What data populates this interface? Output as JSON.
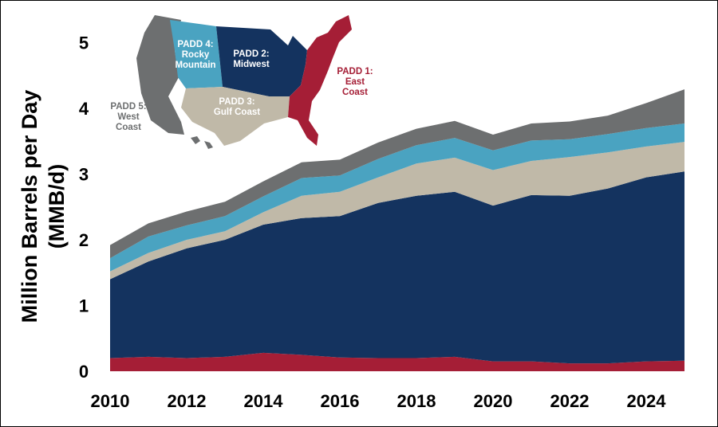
{
  "chart_data": {
    "type": "area",
    "stacked": true,
    "ylabel_line1": "Million Barrels per Day",
    "ylabel_line2": "(MMB/d)",
    "x": [
      2010,
      2011,
      2012,
      2013,
      2014,
      2015,
      2016,
      2017,
      2018,
      2019,
      2020,
      2021,
      2022,
      2023,
      2024,
      2025
    ],
    "xticks": [
      "2010",
      "2012",
      "2014",
      "2016",
      "2018",
      "2020",
      "2022",
      "2024"
    ],
    "xtick_values": [
      2010,
      2012,
      2014,
      2016,
      2018,
      2020,
      2022,
      2024
    ],
    "yticks": [
      "0",
      "1",
      "2",
      "3",
      "4",
      "5"
    ],
    "ytick_values": [
      0,
      1,
      2,
      3,
      4,
      5
    ],
    "xlim": [
      2010,
      2025
    ],
    "ylim": [
      0,
      5.3
    ],
    "grid": false,
    "series": [
      {
        "key": "padd1",
        "color": "#a51e36",
        "values": [
          0.2,
          0.22,
          0.2,
          0.22,
          0.28,
          0.25,
          0.21,
          0.2,
          0.2,
          0.22,
          0.15,
          0.15,
          0.12,
          0.12,
          0.15,
          0.16
        ]
      },
      {
        "key": "padd2",
        "color": "#14335f",
        "values": [
          1.2,
          1.45,
          1.67,
          1.78,
          1.95,
          2.08,
          2.15,
          2.36,
          2.47,
          2.51,
          2.37,
          2.53,
          2.55,
          2.66,
          2.8,
          2.88
        ]
      },
      {
        "key": "padd3",
        "color": "#c0b9a8",
        "values": [
          0.12,
          0.13,
          0.13,
          0.13,
          0.19,
          0.34,
          0.37,
          0.39,
          0.49,
          0.52,
          0.54,
          0.52,
          0.59,
          0.55,
          0.47,
          0.45
        ]
      },
      {
        "key": "padd4",
        "color": "#4aa3c1",
        "values": [
          0.2,
          0.25,
          0.22,
          0.23,
          0.24,
          0.27,
          0.25,
          0.28,
          0.28,
          0.3,
          0.3,
          0.31,
          0.27,
          0.28,
          0.28,
          0.28
        ]
      },
      {
        "key": "padd5",
        "color": "#6d6f70",
        "values": [
          0.2,
          0.2,
          0.21,
          0.22,
          0.23,
          0.24,
          0.24,
          0.25,
          0.25,
          0.26,
          0.24,
          0.26,
          0.27,
          0.28,
          0.38,
          0.52
        ]
      }
    ]
  },
  "map": {
    "padd4": {
      "lines": [
        "PADD 4:",
        "Rocky",
        "Mountain"
      ],
      "color": "#4aa3c1",
      "text_color": "#ffffff"
    },
    "padd2": {
      "lines": [
        "PADD 2:",
        "Midwest"
      ],
      "color": "#14335f",
      "text_color": "#ffffff"
    },
    "padd1": {
      "lines": [
        "PADD 1:",
        "East",
        "Coast"
      ],
      "color": "#a51e36",
      "text_color": "#a51e36"
    },
    "padd3": {
      "lines": [
        "PADD 3:",
        "Gulf Coast"
      ],
      "color": "#c0b9a8",
      "text_color": "#ffffff"
    },
    "padd5": {
      "lines": [
        "PADD 5:",
        "West",
        "Coast"
      ],
      "color": "#6d6f70",
      "text_color": "#6d6f70"
    }
  }
}
